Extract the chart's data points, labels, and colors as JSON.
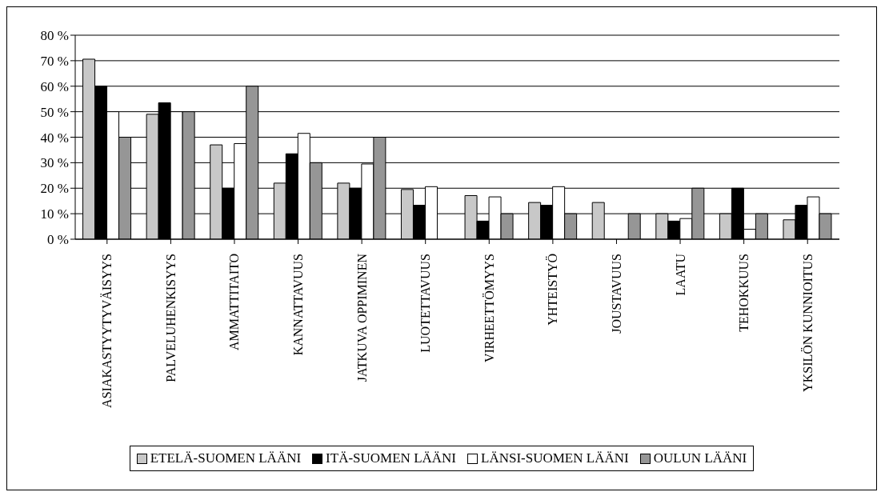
{
  "chart_data": {
    "type": "bar",
    "categories": [
      "ASIAKASTYYTYVÄISYYS",
      "PALVELUHENKISYYS",
      "AMMATTITAITO",
      "KANNATTAVUUS",
      "JATKUVA OPPIMINEN",
      "LUOTETTAVUUS",
      "VIRHEETTÖMYYS",
      "YHTEISTYÖ",
      "JOUSTAVUUS",
      "LAATU",
      "TEHOKKUUS",
      "YKSILÖN KUNNIOITUS"
    ],
    "series": [
      {
        "name": "ETELÄ-SUOMEN LÄÄNI",
        "color": "#c8c8c8",
        "values": [
          70.6,
          49,
          37,
          22,
          22,
          19.5,
          17.1,
          14.4,
          14.4,
          10,
          10,
          7.6
        ]
      },
      {
        "name": "ITÄ-SUOMEN LÄÄNI",
        "color": "#000000",
        "values": [
          60,
          53.5,
          20,
          33.5,
          20,
          13.3,
          7.1,
          13.3,
          0,
          7.1,
          20,
          13.3
        ]
      },
      {
        "name": "LÄNSI-SUOMEN LÄÄNI",
        "color": "#ffffff",
        "values": [
          50,
          50,
          37.5,
          41.5,
          29.5,
          20.6,
          16.6,
          20.6,
          0,
          8.1,
          3.9,
          16.6
        ]
      },
      {
        "name": "OULUN LÄÄNI",
        "color": "#969696",
        "values": [
          40,
          50,
          60,
          30,
          40,
          0,
          10,
          10,
          10,
          20,
          10,
          10
        ]
      }
    ],
    "ylim": [
      0,
      80
    ],
    "yticks": [
      {
        "value": 0,
        "label": "0 %"
      },
      {
        "value": 10,
        "label": "10 %"
      },
      {
        "value": 20,
        "label": "20 %"
      },
      {
        "value": 30,
        "label": "30 %"
      },
      {
        "value": 40,
        "label": "40 %"
      },
      {
        "value": 50,
        "label": "50 %"
      },
      {
        "value": 60,
        "label": "60 %"
      },
      {
        "value": 70,
        "label": "70 %"
      },
      {
        "value": 80,
        "label": "80 %"
      }
    ],
    "grid": "y",
    "legend": "bottom"
  }
}
